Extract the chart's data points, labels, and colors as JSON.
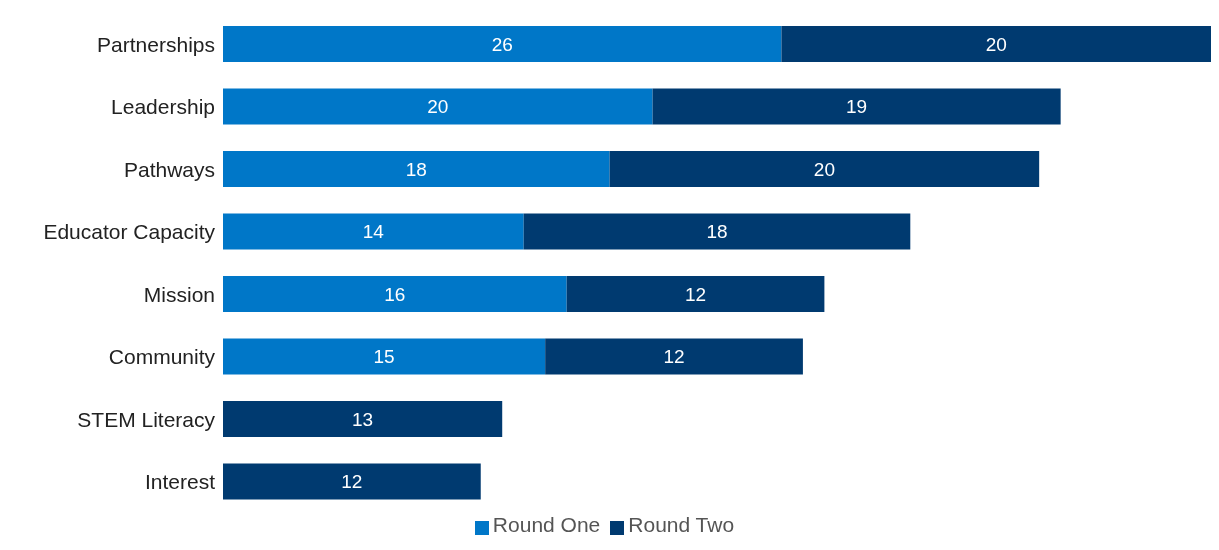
{
  "chart_data": {
    "type": "bar",
    "orientation": "horizontal",
    "stacked": true,
    "data_labels": true,
    "legend": "bottom",
    "categories": [
      "Partnerships",
      "Leadership",
      "Pathways",
      "Educator Capacity",
      "Mission",
      "Community",
      "STEM Literacy",
      "Interest"
    ],
    "series": [
      {
        "name": "Round One",
        "color": "#0077c8",
        "values": [
          26,
          20,
          18,
          14,
          16,
          15,
          null,
          null
        ]
      },
      {
        "name": "Round Two",
        "color": "#003a70",
        "values": [
          20,
          19,
          20,
          18,
          12,
          12,
          13,
          12
        ]
      }
    ]
  }
}
